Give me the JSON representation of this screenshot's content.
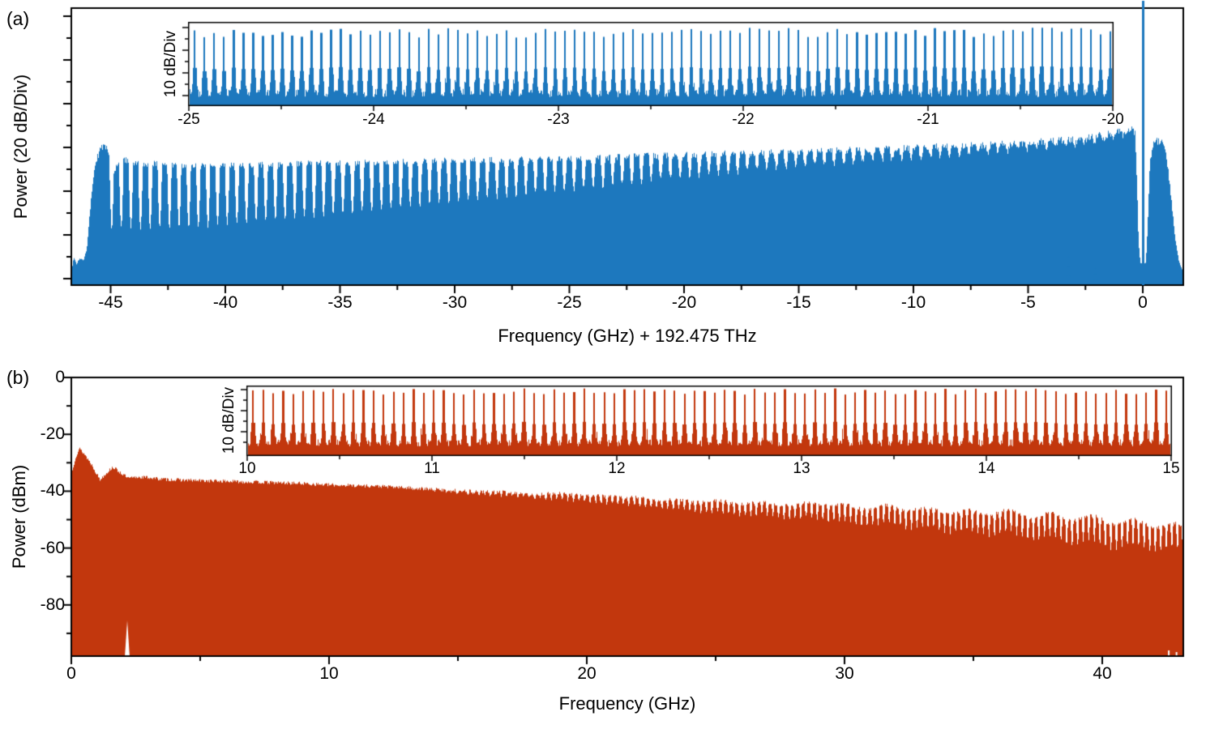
{
  "panel_a": {
    "label": "(a)",
    "ylabel": "Power (20 dB/Div)",
    "xlabel": "Frequency (GHz) + 192.475 THz",
    "x_ticks": [
      -45,
      -40,
      -35,
      -30,
      -25,
      -20,
      -15,
      -10,
      -5,
      0
    ],
    "color": "#1d78be",
    "inset": {
      "ylabel": "10 dB/Div",
      "x_ticks": [
        -25,
        -24,
        -23,
        -22,
        -21,
        -20
      ]
    }
  },
  "panel_b": {
    "label": "(b)",
    "ylabel": "Power (dBm)",
    "xlabel": "Frequency (GHz)",
    "x_ticks": [
      0,
      10,
      20,
      30,
      40
    ],
    "y_ticks": [
      0,
      -20,
      -40,
      -60,
      -80
    ],
    "color": "#c2370d",
    "inset": {
      "ylabel": "10 dB/Div",
      "x_ticks": [
        10,
        11,
        12,
        13,
        14,
        15
      ]
    }
  },
  "chart_data": [
    {
      "id": "panel_a_main",
      "type": "area",
      "description": "Broadband optical comb spectrum (unresolved lines), pump line at 0 GHz with spectral hole around it",
      "xlabel": "Frequency (GHz) + 192.475 THz",
      "ylabel": "Power (20 dB/Div)",
      "y_scale": "20 dB per division, axis unlabeled",
      "xlim": [
        -46.7,
        1.8
      ],
      "x_ticks": [
        -45,
        -40,
        -35,
        -30,
        -25,
        -20,
        -15,
        -10,
        -5,
        0
      ],
      "x_minor_ticks": [
        -42.5,
        -37.5,
        -32.5,
        -27.5,
        -22.5,
        -17.5,
        -12.5,
        -7.5,
        -2.5
      ],
      "color": "#1d78be",
      "envelope_units": "fraction_of_plot_height",
      "envelope": [
        [
          -46.7,
          0.06
        ],
        [
          -46.62,
          0.1
        ],
        [
          -46.5,
          0.075
        ],
        [
          -46.38,
          0.095
        ],
        [
          -46.2,
          0.09
        ],
        [
          -46.05,
          0.13
        ],
        [
          -45.9,
          0.28
        ],
        [
          -45.75,
          0.4
        ],
        [
          -45.6,
          0.46
        ],
        [
          -45.45,
          0.49
        ],
        [
          -45.3,
          0.503
        ],
        [
          -45.15,
          0.49
        ],
        [
          -45.0,
          0.46
        ],
        [
          -44.88,
          0.41
        ],
        [
          -44.75,
          0.43
        ],
        [
          -44.6,
          0.455
        ],
        [
          -44.3,
          0.45
        ],
        [
          -44.0,
          0.44
        ],
        [
          -43.5,
          0.437
        ],
        [
          -43.0,
          0.44
        ],
        [
          -42.5,
          0.433
        ],
        [
          -42.0,
          0.43
        ],
        [
          -41.0,
          0.43
        ],
        [
          -40.0,
          0.432
        ],
        [
          -39.0,
          0.434
        ],
        [
          -38.0,
          0.436
        ],
        [
          -37.0,
          0.438
        ],
        [
          -36.0,
          0.44
        ],
        [
          -35.0,
          0.44
        ],
        [
          -34.0,
          0.443
        ],
        [
          -33.0,
          0.445
        ],
        [
          -32.0,
          0.446
        ],
        [
          -31.0,
          0.448
        ],
        [
          -30.0,
          0.45
        ],
        [
          -29.0,
          0.45
        ],
        [
          -28.0,
          0.452
        ],
        [
          -27.0,
          0.454
        ],
        [
          -26.0,
          0.455
        ],
        [
          -25.0,
          0.458
        ],
        [
          -24.0,
          0.46
        ],
        [
          -23.0,
          0.462
        ],
        [
          -22.0,
          0.465
        ],
        [
          -21.0,
          0.468
        ],
        [
          -20.0,
          0.47
        ],
        [
          -19.0,
          0.472
        ],
        [
          -18.0,
          0.475
        ],
        [
          -17.0,
          0.478
        ],
        [
          -16.0,
          0.48
        ],
        [
          -15.0,
          0.482
        ],
        [
          -14.0,
          0.485
        ],
        [
          -13.0,
          0.488
        ],
        [
          -12.0,
          0.49
        ],
        [
          -11.0,
          0.492
        ],
        [
          -10.0,
          0.495
        ],
        [
          -9.0,
          0.5
        ],
        [
          -8.0,
          0.502
        ],
        [
          -7.0,
          0.505
        ],
        [
          -6.0,
          0.51
        ],
        [
          -5.0,
          0.515
        ],
        [
          -4.0,
          0.52
        ],
        [
          -3.0,
          0.528
        ],
        [
          -2.0,
          0.538
        ],
        [
          -1.5,
          0.545
        ],
        [
          -1.0,
          0.553
        ],
        [
          -0.7,
          0.56
        ],
        [
          -0.5,
          0.566
        ],
        [
          -0.35,
          0.545
        ],
        [
          -0.27,
          0.38
        ],
        [
          -0.2,
          0.16
        ],
        [
          -0.12,
          0.08
        ],
        [
          0.12,
          0.08
        ],
        [
          0.2,
          0.22
        ],
        [
          0.3,
          0.44
        ],
        [
          0.45,
          0.51
        ],
        [
          0.6,
          0.52
        ],
        [
          0.8,
          0.515
        ],
        [
          0.95,
          0.49
        ],
        [
          1.1,
          0.41
        ],
        [
          1.25,
          0.29
        ],
        [
          1.4,
          0.17
        ],
        [
          1.55,
          0.09
        ],
        [
          1.7,
          0.055
        ],
        [
          1.8,
          0.05
        ]
      ],
      "striation": {
        "start": -45.2,
        "end": -0.55,
        "spacing_ghz": 0.42
      },
      "striation_depth": [
        [
          -46,
          0.55
        ],
        [
          -45,
          0.55
        ],
        [
          -40,
          0.5
        ],
        [
          -35,
          0.42
        ],
        [
          -30,
          0.33
        ],
        [
          -25,
          0.25
        ],
        [
          -20,
          0.17
        ],
        [
          -15,
          0.11
        ],
        [
          -10,
          0.07
        ],
        [
          -5,
          0.045
        ],
        [
          -1,
          0.03
        ],
        [
          0,
          0.02
        ]
      ],
      "noise_floor_frac": 0.045,
      "pump_line_x_ghz": 0,
      "floor_spikes": [
        [
          -3.25,
          0.1
        ],
        [
          -2.1,
          0.06
        ]
      ]
    },
    {
      "id": "panel_a_inset",
      "type": "area",
      "description": "Zoom of optical comb lines, resolved, 10 dB/Div",
      "ylabel": "10 dB/Div",
      "xlim": [
        -25,
        -20
      ],
      "x_ticks": [
        -25,
        -24,
        -23,
        -22,
        -21,
        -20
      ],
      "x_minor_step": 0.5,
      "color": "#1d78be",
      "first_line_ghz": -24.97,
      "line_spacing_ghz": 0.0527,
      "n_lines": 95,
      "peak_min_frac": 0.82,
      "peak_var_frac": 0.12,
      "base_frac": 0.1,
      "base_jitter": 0.1
    },
    {
      "id": "panel_b_main",
      "type": "area",
      "description": "RF/photodetected comb spectrum, slowly decaying envelope with comb teeth resolving toward high frequency",
      "xlabel": "Frequency (GHz)",
      "ylabel": "Power (dBm)",
      "xlim": [
        0,
        43.14
      ],
      "ylim": [
        -98,
        0
      ],
      "x_ticks": [
        0,
        10,
        20,
        30,
        40
      ],
      "x_minor_ticks": [
        5,
        15,
        25,
        35
      ],
      "y_ticks": [
        0,
        -20,
        -40,
        -60,
        -80
      ],
      "y_minor_ticks": [
        -10,
        -30,
        -50,
        -70,
        -90
      ],
      "color": "#c2370d",
      "envelope_dbm": [
        [
          0,
          -34
        ],
        [
          0.15,
          -28
        ],
        [
          0.3,
          -25
        ],
        [
          0.5,
          -27
        ],
        [
          0.8,
          -31
        ],
        [
          1.1,
          -36
        ],
        [
          1.3,
          -34
        ],
        [
          1.6,
          -31.5
        ],
        [
          1.9,
          -33.5
        ],
        [
          2.2,
          -35.5
        ],
        [
          2.6,
          -35
        ],
        [
          3,
          -35.2
        ],
        [
          3.5,
          -35.8
        ],
        [
          4,
          -36
        ],
        [
          5,
          -36.3
        ],
        [
          6,
          -36.5
        ],
        [
          7,
          -36.8
        ],
        [
          8,
          -37
        ],
        [
          9,
          -37.3
        ],
        [
          10,
          -37.8
        ],
        [
          11,
          -38
        ],
        [
          12,
          -38.3
        ],
        [
          13,
          -38.8
        ],
        [
          14,
          -39.3
        ],
        [
          15,
          -39.8
        ],
        [
          16,
          -40.2
        ],
        [
          17,
          -40.3
        ],
        [
          18,
          -41
        ],
        [
          19,
          -40.8
        ],
        [
          20,
          -41.5
        ],
        [
          21,
          -41.8
        ],
        [
          22,
          -42.2
        ],
        [
          23,
          -42.8
        ],
        [
          24,
          -43.2
        ],
        [
          25,
          -43.3
        ],
        [
          26,
          -43.8
        ],
        [
          27,
          -43.8
        ],
        [
          28,
          -44.3
        ],
        [
          29,
          -43.8
        ],
        [
          30,
          -44.8
        ],
        [
          31,
          -45.2
        ],
        [
          32,
          -44.8
        ],
        [
          33,
          -45.8
        ],
        [
          34,
          -46.2
        ],
        [
          35,
          -46.8
        ],
        [
          36,
          -46.2
        ],
        [
          37,
          -47.2
        ],
        [
          38,
          -47.8
        ],
        [
          39,
          -48.2
        ],
        [
          40,
          -48.8
        ],
        [
          41,
          -49.8
        ],
        [
          42,
          -50.2
        ],
        [
          43.14,
          -51.5
        ]
      ],
      "teeth": {
        "spacing_ghz": 0.215,
        "start_ghz": 13,
        "depth_db_per_ghz": 0.33,
        "depth_db_max": 9
      },
      "cluster_modulation": {
        "period_ghz": 1.6,
        "start_ghz": 20,
        "amp_db_per_ghz": 0.12,
        "amp_db_max": 2.5
      },
      "bottom_notch": {
        "x_ghz": 2.17,
        "top_dbm": -85.5,
        "half_width_ghz": 0.09
      }
    },
    {
      "id": "panel_b_inset",
      "type": "area",
      "description": "Zoom of RF comb lines, resolved, 10 dB/Div",
      "ylabel": "10 dB/Div",
      "xlim": [
        10,
        15
      ],
      "x_ticks": [
        10,
        11,
        12,
        13,
        14,
        15
      ],
      "x_minor_step": 0.5,
      "color": "#c2370d",
      "first_line_ghz": 10.03,
      "line_spacing_ghz": 0.0543,
      "n_lines": 92,
      "peak_min_frac": 0.88,
      "peak_var_frac": 0.09,
      "base_frac": 0.13,
      "base_jitter": 0.1
    }
  ]
}
